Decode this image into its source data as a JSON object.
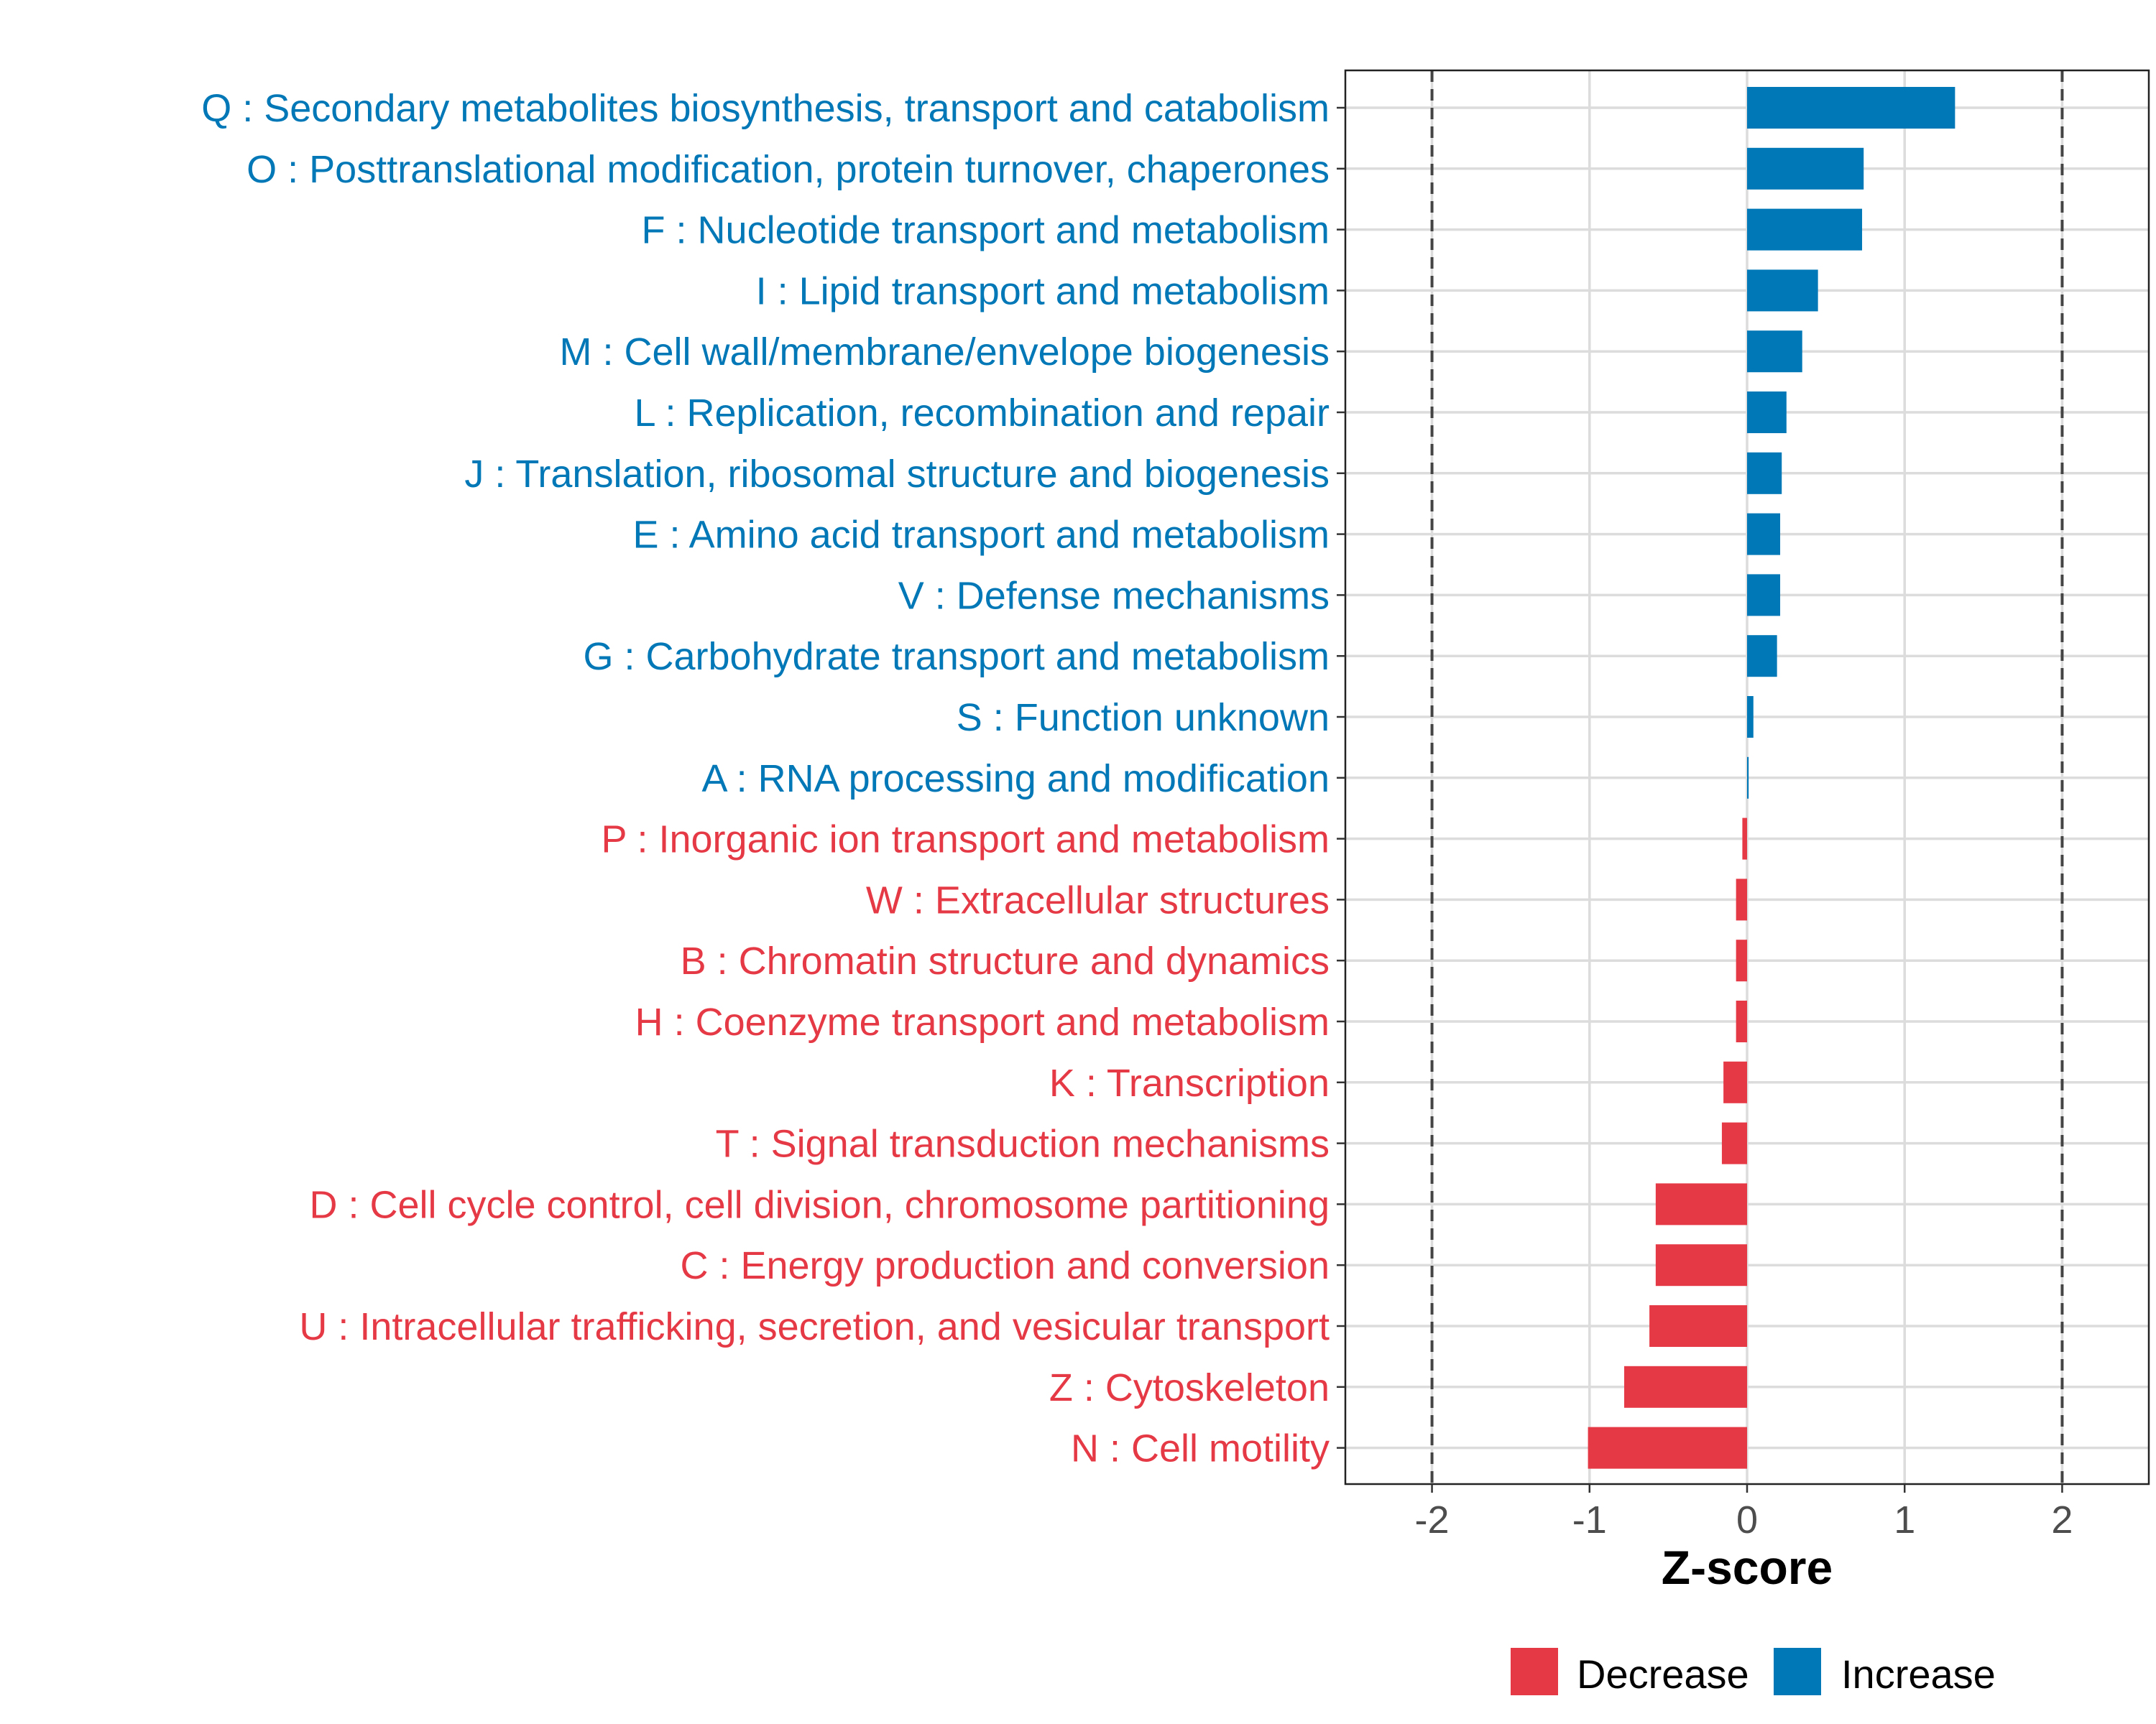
{
  "chart_data": {
    "type": "bar",
    "orientation": "horizontal",
    "title": "",
    "xlabel": "Z-score",
    "ylabel": "",
    "xlim": [
      -2.55,
      2.55
    ],
    "xticks": [
      -2,
      -1,
      0,
      1,
      2
    ],
    "xtick_labels": [
      "-2",
      "-1",
      "0",
      "1",
      "2"
    ],
    "reference_lines": [
      -2,
      2
    ],
    "grid": true,
    "legend_position": "bottom",
    "colors": {
      "Decrease": "#E63946",
      "Increase": "#0077B6"
    },
    "legend": [
      {
        "label": "Decrease",
        "color": "#E63946"
      },
      {
        "label": "Increase",
        "color": "#0077B6"
      }
    ],
    "categories": [
      "Q : Secondary metabolites biosynthesis, transport and catabolism",
      "O : Posttranslational modification, protein turnover, chaperones",
      "F : Nucleotide transport and metabolism",
      "I : Lipid transport and metabolism",
      "M : Cell wall/membrane/envelope biogenesis",
      "L : Replication, recombination and repair",
      "J : Translation, ribosomal structure and biogenesis",
      "E : Amino acid transport and metabolism",
      "V : Defense mechanisms",
      "G : Carbohydrate transport and metabolism",
      "S : Function unknown",
      "A : RNA processing and modification",
      "P : Inorganic ion transport and metabolism",
      "W : Extracellular structures",
      "B : Chromatin structure and dynamics",
      "H : Coenzyme transport and metabolism",
      "K : Transcription",
      "T : Signal transduction mechanisms",
      "D : Cell cycle control, cell division, chromosome partitioning",
      "C : Energy production and conversion",
      "U : Intracellular trafficking, secretion, and vesicular transport",
      "Z : Cytoskeleton",
      "N : Cell motility"
    ],
    "values": [
      1.32,
      0.74,
      0.73,
      0.45,
      0.35,
      0.25,
      0.22,
      0.21,
      0.21,
      0.19,
      0.04,
      0.01,
      -0.03,
      -0.07,
      -0.07,
      -0.07,
      -0.15,
      -0.16,
      -0.58,
      -0.58,
      -0.62,
      -0.78,
      -1.01
    ],
    "groups": [
      "Increase",
      "Increase",
      "Increase",
      "Increase",
      "Increase",
      "Increase",
      "Increase",
      "Increase",
      "Increase",
      "Increase",
      "Increase",
      "Increase",
      "Decrease",
      "Decrease",
      "Decrease",
      "Decrease",
      "Decrease",
      "Decrease",
      "Decrease",
      "Decrease",
      "Decrease",
      "Decrease",
      "Decrease"
    ]
  }
}
